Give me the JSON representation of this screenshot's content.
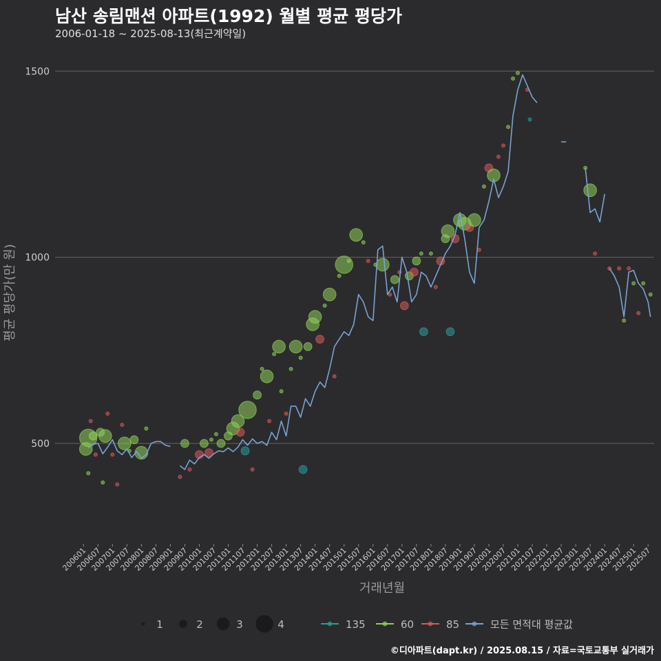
{
  "chart_data": {
    "type": "scatter",
    "title": "남산 송림맨션 아파트(1992) 월별 평균 평당가",
    "subtitle": "2006-01-18 ~ 2025-08-13(최근계약일)",
    "xlabel": "거래년월",
    "ylabel": "평균 평당가(만 원)",
    "caption": "©디아파트(dapt.kr) / 2025.08.15 / 자료=국토교통부 실거래가",
    "ylim": [
      230,
      1580
    ],
    "yticks": [
      500,
      1000,
      1500
    ],
    "xlim": [
      "2006-01",
      "2025-08"
    ],
    "xticks": [
      "200601",
      "200607",
      "200701",
      "200707",
      "200801",
      "200807",
      "200901",
      "200907",
      "201001",
      "201007",
      "201101",
      "201107",
      "201201",
      "201207",
      "201301",
      "201307",
      "201401",
      "201407",
      "201501",
      "201507",
      "201601",
      "201607",
      "201701",
      "201707",
      "201801",
      "201807",
      "201901",
      "201907",
      "202001",
      "202007",
      "202101",
      "202107",
      "202201",
      "202207",
      "202301",
      "202307",
      "202401",
      "202407",
      "202501",
      "202507"
    ],
    "grid": true,
    "colors": {
      "135": "#2a9d9d",
      "60": "#8fd05a",
      "85": "#d95a5a",
      "avg": "#7aa3d4"
    },
    "size_legend": {
      "values": [
        1,
        2,
        3,
        4
      ],
      "labels": [
        "1",
        "2",
        "3",
        "4"
      ]
    },
    "color_legend": {
      "items": [
        {
          "key": "135",
          "label": "135"
        },
        {
          "key": "60",
          "label": "60"
        },
        {
          "key": "85",
          "label": "85"
        },
        {
          "key": "avg",
          "label": "모든 면적대 평균값"
        }
      ]
    },
    "avg_line": [
      [
        "2006-03",
        488
      ],
      [
        "2006-05",
        498
      ],
      [
        "2006-07",
        500
      ],
      [
        "2006-09",
        472
      ],
      [
        "2006-11",
        490
      ],
      [
        "2007-01",
        510
      ],
      [
        "2007-03",
        480
      ],
      [
        "2007-05",
        470
      ],
      [
        "2007-07",
        485
      ],
      [
        "2007-09",
        462
      ],
      [
        "2007-11",
        478
      ],
      [
        "2008-01",
        460
      ],
      [
        "2008-03",
        470
      ],
      [
        "2008-05",
        500
      ],
      [
        "2008-07",
        505
      ],
      [
        "2008-09",
        505
      ],
      [
        "2008-11",
        495
      ],
      [
        "2009-01",
        492
      ],
      null,
      [
        "2009-05",
        440
      ],
      [
        "2009-07",
        430
      ],
      [
        "2009-09",
        455
      ],
      [
        "2009-11",
        445
      ],
      [
        "2010-01",
        462
      ],
      [
        "2010-03",
        470
      ],
      [
        "2010-05",
        460
      ],
      [
        "2010-07",
        472
      ],
      [
        "2010-09",
        480
      ],
      [
        "2010-11",
        478
      ],
      [
        "2011-01",
        488
      ],
      [
        "2011-03",
        478
      ],
      [
        "2011-05",
        490
      ],
      [
        "2011-07",
        510
      ],
      [
        "2011-09",
        495
      ],
      [
        "2011-11",
        512
      ],
      [
        "2012-01",
        500
      ],
      [
        "2012-03",
        505
      ],
      [
        "2012-05",
        495
      ],
      [
        "2012-07",
        530
      ],
      [
        "2012-09",
        510
      ],
      [
        "2012-11",
        560
      ],
      [
        "2013-01",
        520
      ],
      [
        "2013-03",
        600
      ],
      [
        "2013-05",
        600
      ],
      [
        "2013-07",
        570
      ],
      [
        "2013-09",
        620
      ],
      [
        "2013-11",
        600
      ],
      [
        "2014-01",
        640
      ],
      [
        "2014-03",
        665
      ],
      [
        "2014-05",
        650
      ],
      [
        "2014-07",
        700
      ],
      [
        "2014-09",
        760
      ],
      [
        "2014-11",
        780
      ],
      [
        "2015-01",
        800
      ],
      [
        "2015-03",
        790
      ],
      [
        "2015-05",
        820
      ],
      [
        "2015-07",
        900
      ],
      [
        "2015-09",
        880
      ],
      [
        "2015-11",
        840
      ],
      [
        "2016-01",
        830
      ],
      [
        "2016-03",
        1020
      ],
      [
        "2016-05",
        1030
      ],
      [
        "2016-07",
        900
      ],
      [
        "2016-09",
        920
      ],
      [
        "2016-11",
        880
      ],
      [
        "2017-01",
        1000
      ],
      [
        "2017-03",
        960
      ],
      [
        "2017-05",
        880
      ],
      [
        "2017-07",
        900
      ],
      [
        "2017-09",
        960
      ],
      [
        "2017-11",
        950
      ],
      [
        "2018-01",
        920
      ],
      [
        "2018-03",
        950
      ],
      [
        "2018-05",
        980
      ],
      [
        "2018-07",
        1010
      ],
      [
        "2018-09",
        1030
      ],
      [
        "2018-11",
        1060
      ],
      [
        "2019-01",
        1120
      ],
      [
        "2019-03",
        1050
      ],
      [
        "2019-05",
        960
      ],
      [
        "2019-07",
        930
      ],
      [
        "2019-09",
        1080
      ],
      [
        "2019-11",
        1100
      ],
      [
        "2020-01",
        1150
      ],
      [
        "2020-03",
        1210
      ],
      [
        "2020-05",
        1160
      ],
      [
        "2020-07",
        1190
      ],
      [
        "2020-09",
        1230
      ],
      [
        "2020-11",
        1380
      ],
      [
        "2021-01",
        1450
      ],
      [
        "2021-03",
        1490
      ],
      [
        "2021-05",
        1460
      ],
      [
        "2021-07",
        1430
      ],
      [
        "2021-09",
        1415
      ],
      null,
      [
        "2022-07",
        1310
      ],
      [
        "2022-09",
        1310
      ],
      null,
      [
        "2023-05",
        1240
      ],
      [
        "2023-07",
        1120
      ],
      [
        "2023-09",
        1130
      ],
      [
        "2023-11",
        1095
      ],
      [
        "2024-01",
        1170
      ],
      null,
      [
        "2024-03",
        970
      ],
      [
        "2024-05",
        950
      ],
      [
        "2024-07",
        920
      ],
      [
        "2024-09",
        840
      ],
      [
        "2024-11",
        960
      ],
      [
        "2025-01",
        965
      ],
      [
        "2025-03",
        930
      ],
      [
        "2025-05",
        915
      ],
      [
        "2025-07",
        880
      ],
      [
        "2025-08",
        840
      ]
    ],
    "points": [
      [
        "2006-02",
        485,
        "60",
        3
      ],
      [
        "2006-03",
        515,
        "60",
        4
      ],
      [
        "2006-03",
        420,
        "60",
        1
      ],
      [
        "2006-04",
        560,
        "85",
        1
      ],
      [
        "2006-05",
        520,
        "60",
        2
      ],
      [
        "2006-06",
        470,
        "85",
        1
      ],
      [
        "2006-08",
        530,
        "60",
        2
      ],
      [
        "2006-09",
        395,
        "60",
        1
      ],
      [
        "2006-10",
        520,
        "60",
        3
      ],
      [
        "2006-11",
        580,
        "85",
        1
      ],
      [
        "2007-01",
        470,
        "85",
        1
      ],
      [
        "2007-03",
        390,
        "85",
        1
      ],
      [
        "2007-05",
        550,
        "85",
        1
      ],
      [
        "2007-06",
        500,
        "60",
        3
      ],
      [
        "2007-08",
        480,
        "60",
        1
      ],
      [
        "2007-10",
        510,
        "60",
        2
      ],
      [
        "2008-01",
        475,
        "60",
        3
      ],
      [
        "2008-03",
        540,
        "60",
        1
      ],
      [
        "2009-05",
        410,
        "85",
        1
      ],
      [
        "2009-07",
        500,
        "60",
        2
      ],
      [
        "2009-09",
        430,
        "85",
        1
      ],
      [
        "2010-01",
        470,
        "85",
        2
      ],
      [
        "2010-03",
        500,
        "60",
        2
      ],
      [
        "2010-05",
        475,
        "85",
        2
      ],
      [
        "2010-06",
        510,
        "60",
        1
      ],
      [
        "2010-08",
        525,
        "60",
        1
      ],
      [
        "2010-10",
        500,
        "60",
        2
      ],
      [
        "2011-01",
        520,
        "60",
        2
      ],
      [
        "2011-03",
        540,
        "60",
        3
      ],
      [
        "2011-05",
        560,
        "60",
        3
      ],
      [
        "2011-06",
        530,
        "85",
        2
      ],
      [
        "2011-08",
        480,
        "135",
        2
      ],
      [
        "2011-09",
        590,
        "60",
        4
      ],
      [
        "2011-11",
        430,
        "85",
        1
      ],
      [
        "2012-01",
        630,
        "60",
        2
      ],
      [
        "2012-03",
        700,
        "60",
        1
      ],
      [
        "2012-05",
        680,
        "60",
        3
      ],
      [
        "2012-06",
        560,
        "85",
        1
      ],
      [
        "2012-08",
        740,
        "60",
        1
      ],
      [
        "2012-10",
        760,
        "60",
        3
      ],
      [
        "2012-11",
        640,
        "60",
        1
      ],
      [
        "2013-01",
        580,
        "85",
        1
      ],
      [
        "2013-03",
        700,
        "60",
        1
      ],
      [
        "2013-05",
        760,
        "60",
        3
      ],
      [
        "2013-07",
        730,
        "60",
        1
      ],
      [
        "2013-08",
        430,
        "135",
        2
      ],
      [
        "2013-10",
        760,
        "60",
        2
      ],
      [
        "2013-12",
        820,
        "60",
        3
      ],
      [
        "2014-01",
        840,
        "60",
        3
      ],
      [
        "2014-03",
        780,
        "85",
        2
      ],
      [
        "2014-05",
        870,
        "60",
        1
      ],
      [
        "2014-07",
        900,
        "60",
        3
      ],
      [
        "2014-09",
        680,
        "85",
        1
      ],
      [
        "2014-11",
        950,
        "60",
        1
      ],
      [
        "2015-01",
        980,
        "60",
        4
      ],
      [
        "2015-03",
        990,
        "60",
        1
      ],
      [
        "2015-06",
        1060,
        "60",
        3
      ],
      [
        "2015-09",
        1040,
        "60",
        1
      ],
      [
        "2015-11",
        990,
        "85",
        1
      ],
      [
        "2016-02",
        980,
        "60",
        1
      ],
      [
        "2016-05",
        980,
        "60",
        3
      ],
      [
        "2016-08",
        900,
        "85",
        1
      ],
      [
        "2016-10",
        940,
        "60",
        2
      ],
      [
        "2016-12",
        960,
        "85",
        1
      ],
      [
        "2017-02",
        870,
        "85",
        2
      ],
      [
        "2017-04",
        950,
        "60",
        2
      ],
      [
        "2017-06",
        960,
        "85",
        2
      ],
      [
        "2017-07",
        990,
        "60",
        2
      ],
      [
        "2017-09",
        1010,
        "60",
        1
      ],
      [
        "2017-10",
        800,
        "135",
        2
      ],
      [
        "2018-01",
        1010,
        "60",
        1
      ],
      [
        "2018-03",
        920,
        "85",
        1
      ],
      [
        "2018-05",
        990,
        "85",
        2
      ],
      [
        "2018-07",
        1050,
        "60",
        2
      ],
      [
        "2018-08",
        1070,
        "60",
        3
      ],
      [
        "2018-09",
        800,
        "135",
        2
      ],
      [
        "2018-11",
        1050,
        "85",
        2
      ],
      [
        "2019-01",
        1100,
        "60",
        3
      ],
      [
        "2019-03",
        1090,
        "60",
        3
      ],
      [
        "2019-05",
        1080,
        "85",
        2
      ],
      [
        "2019-07",
        1100,
        "60",
        3
      ],
      [
        "2019-09",
        1020,
        "85",
        1
      ],
      [
        "2019-11",
        1190,
        "60",
        1
      ],
      [
        "2020-01",
        1240,
        "85",
        2
      ],
      [
        "2020-03",
        1220,
        "60",
        3
      ],
      [
        "2020-05",
        1270,
        "85",
        1
      ],
      [
        "2020-07",
        1300,
        "85",
        1
      ],
      [
        "2020-09",
        1350,
        "60",
        1
      ],
      [
        "2020-11",
        1480,
        "60",
        1
      ],
      [
        "2021-01",
        1495,
        "60",
        1
      ],
      [
        "2021-05",
        1450,
        "85",
        1
      ],
      [
        "2021-06",
        1370,
        "135",
        1
      ],
      [
        "2023-05",
        1240,
        "60",
        1
      ],
      [
        "2023-07",
        1180,
        "60",
        3
      ],
      [
        "2023-09",
        1010,
        "85",
        1
      ],
      [
        "2024-03",
        970,
        "85",
        1
      ],
      [
        "2024-07",
        970,
        "85",
        1
      ],
      [
        "2024-09",
        830,
        "60",
        1
      ],
      [
        "2024-11",
        970,
        "85",
        1
      ],
      [
        "2025-01",
        930,
        "60",
        1
      ],
      [
        "2025-03",
        850,
        "85",
        1
      ],
      [
        "2025-05",
        930,
        "60",
        1
      ],
      [
        "2025-08",
        900,
        "60",
        1
      ]
    ]
  }
}
